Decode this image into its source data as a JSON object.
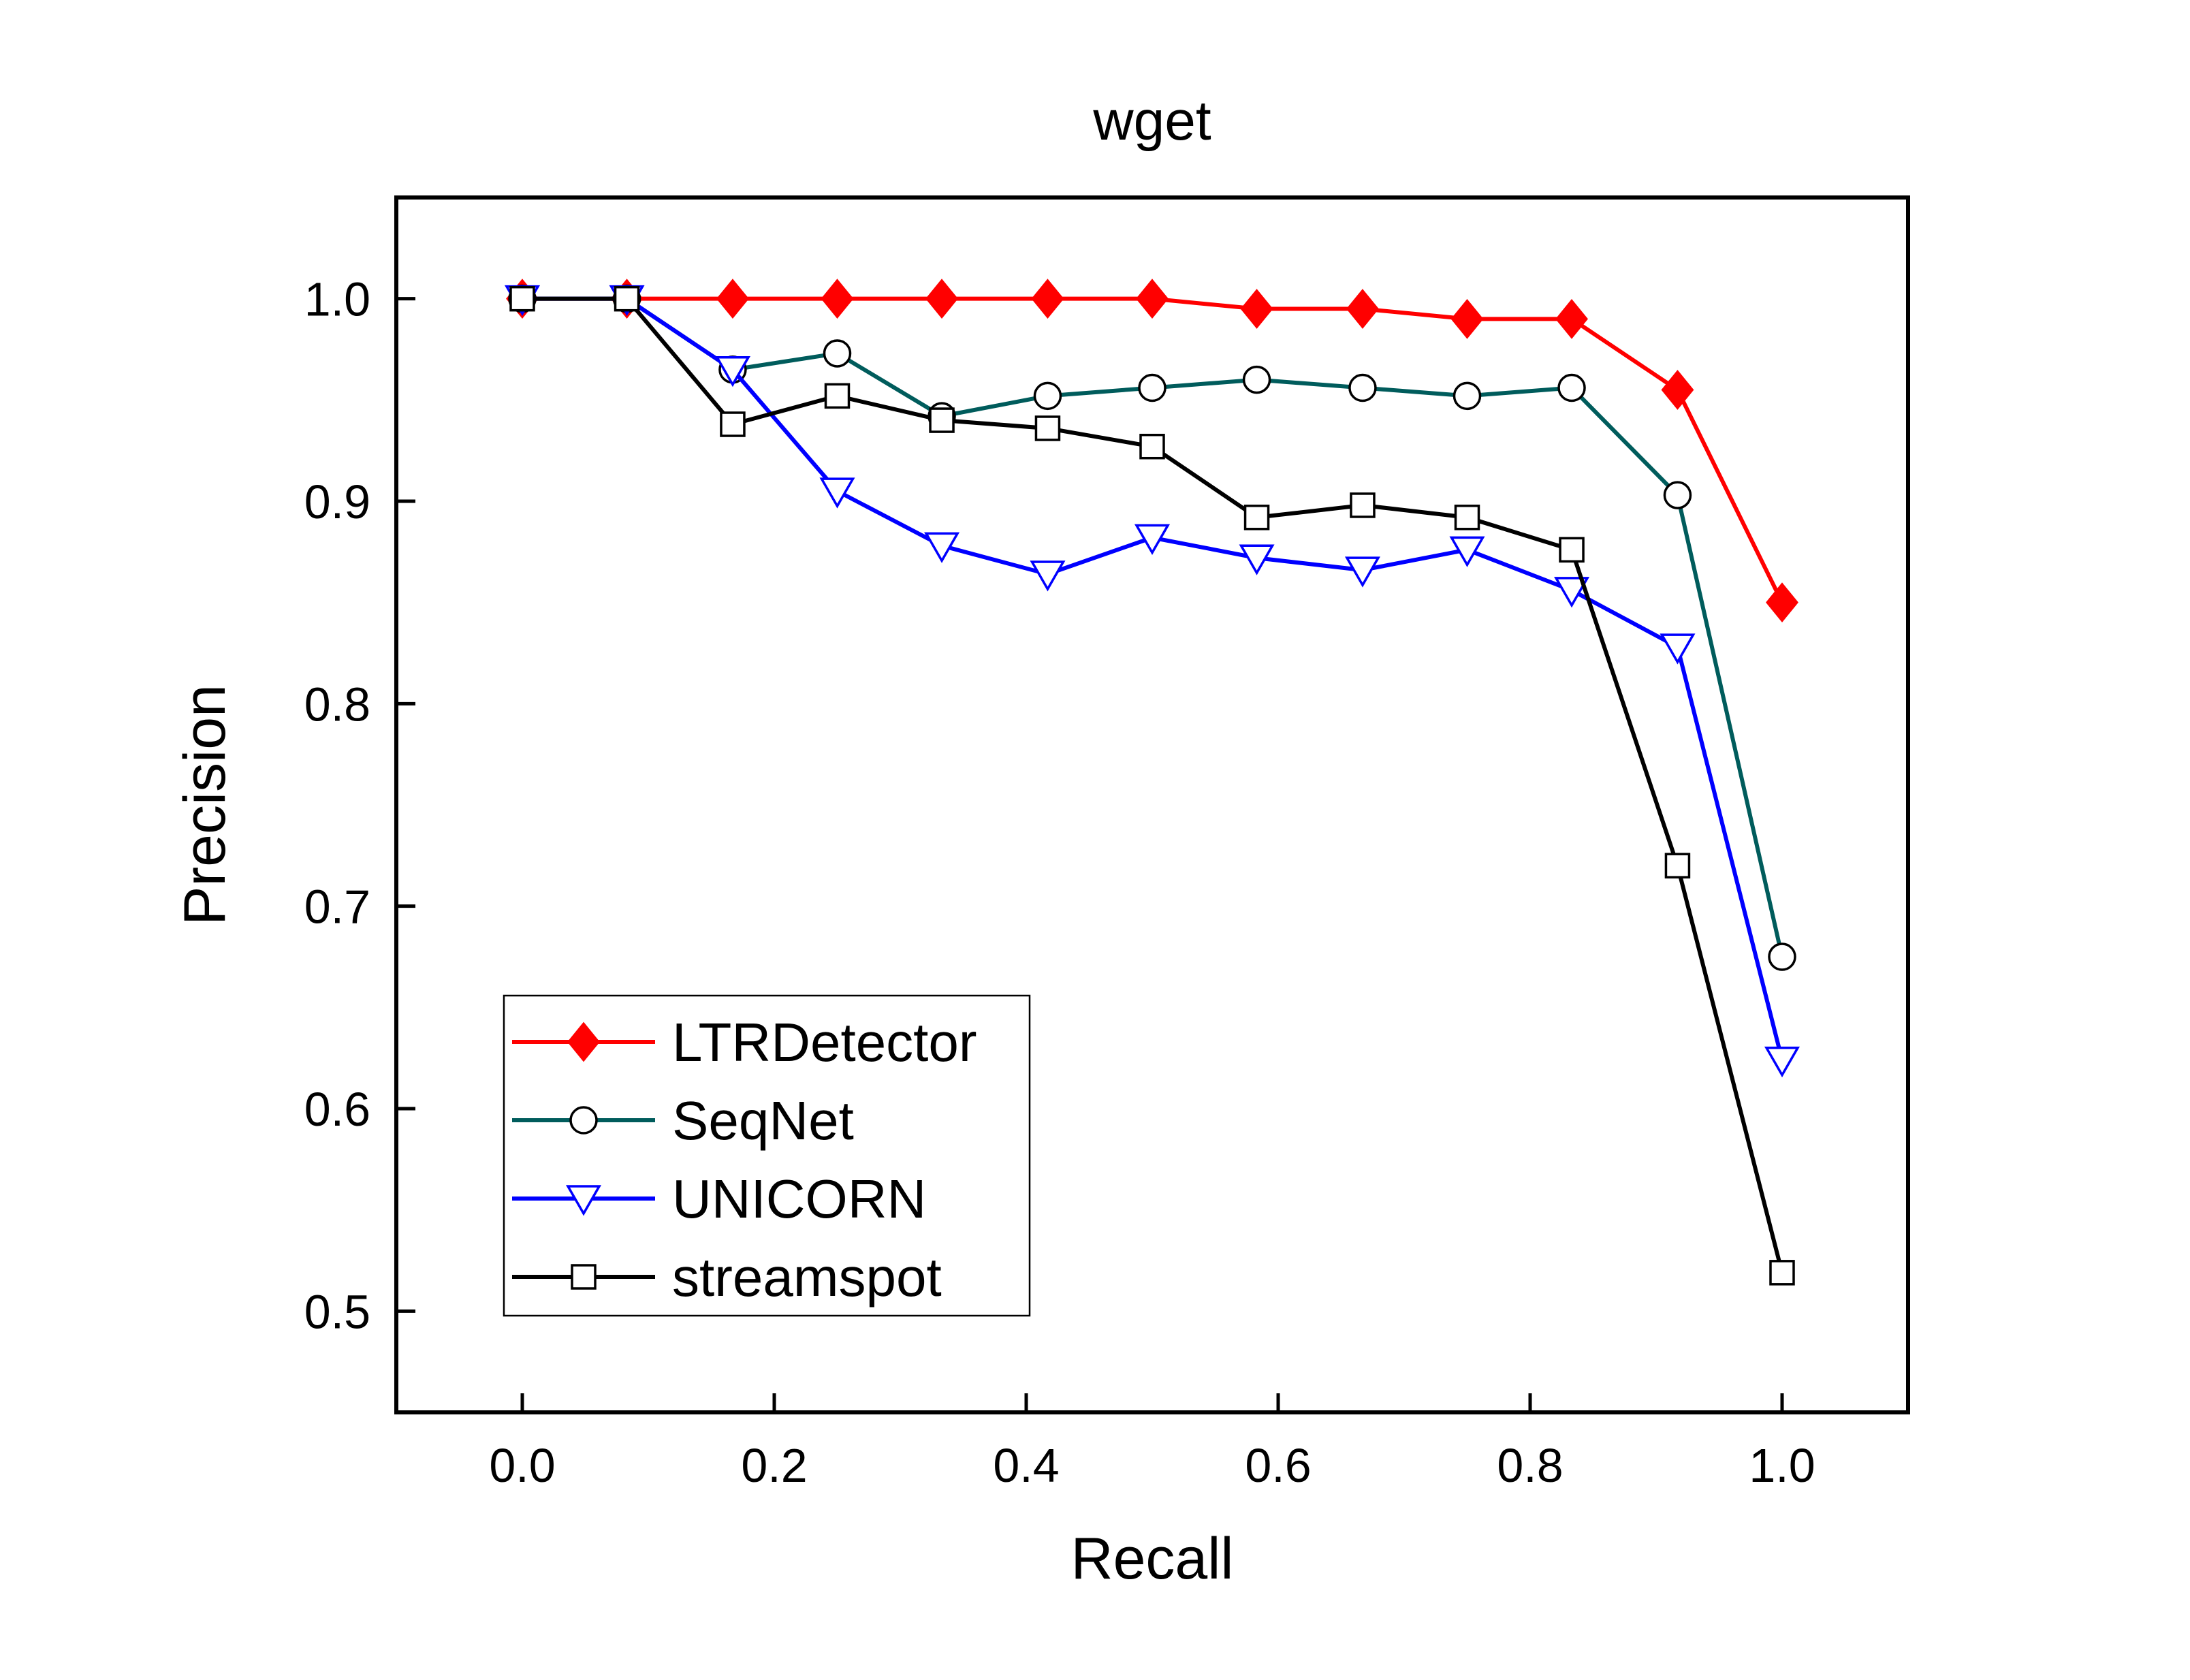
{
  "chart_data": {
    "type": "line",
    "title": "wget",
    "xlabel": "Recall",
    "ylabel": "Precision",
    "xlim": [
      -0.1,
      1.1
    ],
    "ylim": [
      0.45,
      1.05
    ],
    "xticks": [
      0.0,
      0.2,
      0.4,
      0.6,
      0.8,
      1.0
    ],
    "xtick_labels": [
      "0.0",
      "0.2",
      "0.4",
      "0.6",
      "0.8",
      "1.0"
    ],
    "yticks": [
      0.5,
      0.6,
      0.7,
      0.8,
      0.9,
      1.0
    ],
    "ytick_labels": [
      "0.5",
      "0.6",
      "0.7",
      "0.8",
      "0.9",
      "1.0"
    ],
    "grid": false,
    "legend_position": "bottom-left",
    "series": [
      {
        "name": "LTRDetector",
        "color": "#ff0000",
        "marker": "diamond-filled",
        "x": [
          0.0,
          0.083,
          0.167,
          0.25,
          0.333,
          0.417,
          0.5,
          0.583,
          0.667,
          0.75,
          0.833,
          0.917,
          1.0
        ],
        "y": [
          1.0,
          1.0,
          1.0,
          1.0,
          1.0,
          1.0,
          1.0,
          0.995,
          0.995,
          0.99,
          0.99,
          0.955,
          0.85
        ]
      },
      {
        "name": "SeqNet",
        "color": "#005c5c",
        "marker": "circle-open",
        "x": [
          0.0,
          0.083,
          0.167,
          0.25,
          0.333,
          0.417,
          0.5,
          0.583,
          0.667,
          0.75,
          0.833,
          0.917,
          1.0
        ],
        "y": [
          1.0,
          1.0,
          0.965,
          0.973,
          0.942,
          0.952,
          0.956,
          0.96,
          0.956,
          0.952,
          0.956,
          0.903,
          0.675
        ]
      },
      {
        "name": "UNICORN",
        "color": "#0000ff",
        "marker": "triangle-down-open",
        "x": [
          0.0,
          0.083,
          0.167,
          0.25,
          0.333,
          0.417,
          0.5,
          0.583,
          0.667,
          0.75,
          0.833,
          0.917,
          1.0
        ],
        "y": [
          1.0,
          1.0,
          0.965,
          0.905,
          0.878,
          0.864,
          0.882,
          0.872,
          0.866,
          0.876,
          0.856,
          0.828,
          0.624
        ]
      },
      {
        "name": "streamspot",
        "color": "#000000",
        "marker": "square-open",
        "x": [
          0.0,
          0.083,
          0.167,
          0.25,
          0.333,
          0.417,
          0.5,
          0.583,
          0.667,
          0.75,
          0.833,
          0.917,
          1.0
        ],
        "y": [
          1.0,
          1.0,
          0.938,
          0.952,
          0.94,
          0.936,
          0.927,
          0.892,
          0.898,
          0.892,
          0.876,
          0.72,
          0.519
        ]
      }
    ]
  }
}
